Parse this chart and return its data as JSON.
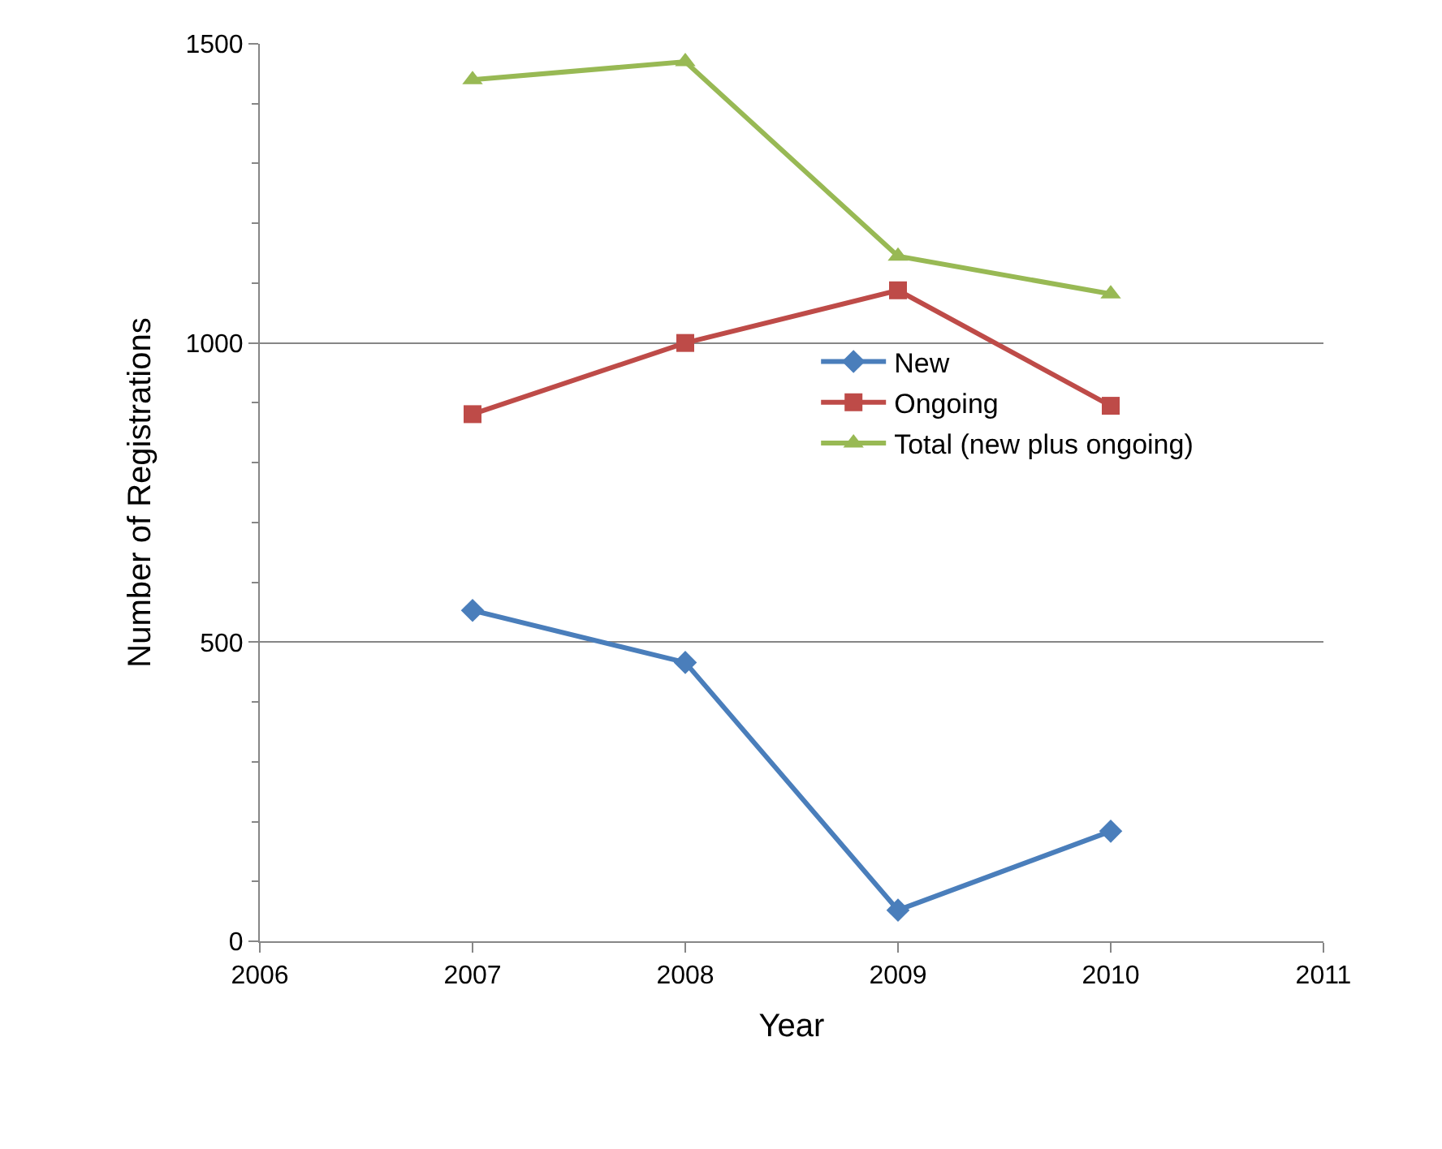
{
  "chart_data": {
    "type": "line",
    "xlabel": "Year",
    "ylabel": "Number of Registrations",
    "x": [
      2007,
      2008,
      2009,
      2010
    ],
    "series": [
      {
        "name": "New",
        "color": "#4a7ebb",
        "values": [
          553,
          466,
          52,
          184
        ],
        "marker": "diamond"
      },
      {
        "name": "Ongoing",
        "color": "#be4b48",
        "values": [
          881,
          1000,
          1088,
          895
        ],
        "marker": "square"
      },
      {
        "name": "Total (new plus ongoing)",
        "color": "#98b954",
        "values": [
          1440,
          1470,
          1145,
          1082
        ],
        "marker": "triangle"
      }
    ],
    "xlim": [
      2006,
      2011
    ],
    "xticks": [
      2006,
      2007,
      2008,
      2009,
      2010,
      2011
    ],
    "ylim": [
      0,
      1500
    ],
    "yticks": [
      0,
      {
        "value": 100,
        "label": null
      },
      {
        "value": 200,
        "label": null
      },
      {
        "value": 300,
        "label": null
      },
      {
        "value": 400,
        "label": null
      },
      500,
      {
        "value": 600,
        "label": null
      },
      {
        "value": 700,
        "label": null
      },
      {
        "value": 800,
        "label": null
      },
      {
        "value": 900,
        "label": null
      },
      1000,
      {
        "value": 1100,
        "label": null
      },
      {
        "value": 1200,
        "label": null
      },
      {
        "value": 1300,
        "label": null
      },
      {
        "value": 1400,
        "label": null
      },
      1500
    ],
    "grid": "y",
    "legend": "right",
    "line_style": "solid"
  }
}
